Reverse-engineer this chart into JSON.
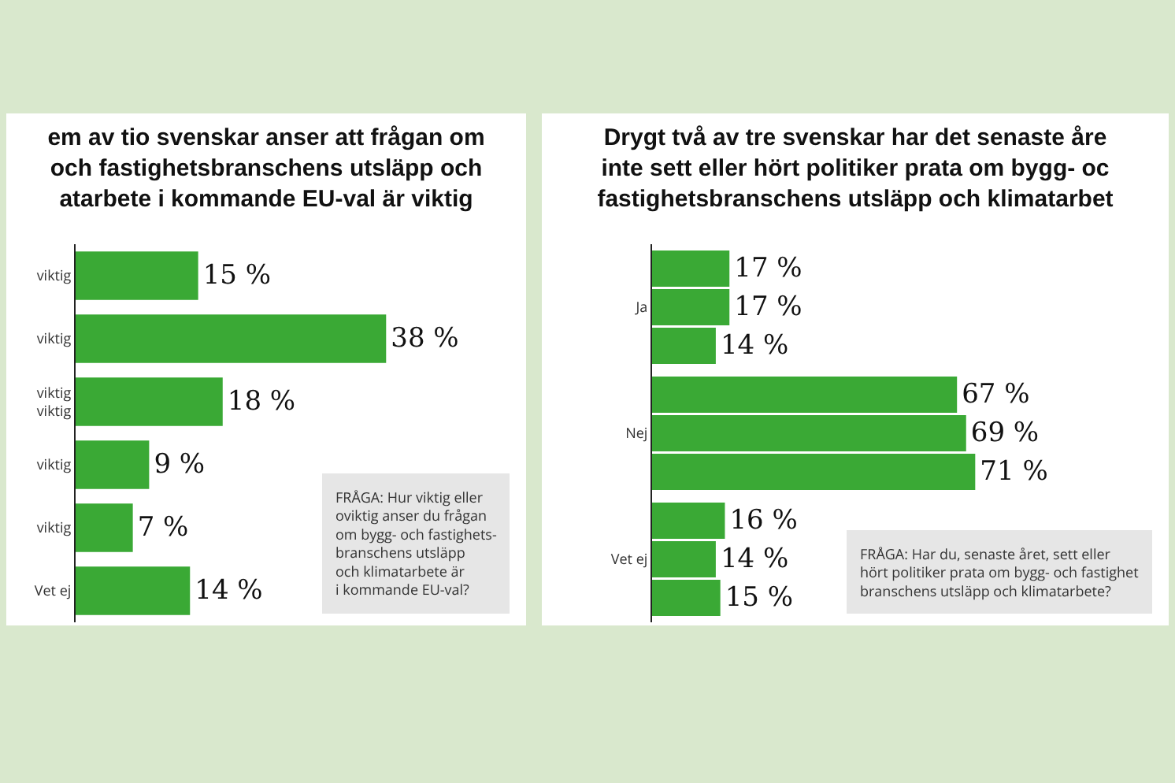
{
  "chart_data": [
    {
      "type": "bar",
      "orientation": "horizontal",
      "title": "em av tio svenskar anser att frågan om\noch fastighetsbranschens utsläpp och\natarbete i kommande EU-val är viktig",
      "categories": [
        "viktig",
        "viktig",
        "viktig\nviktig",
        "viktig",
        "viktig",
        "Vet ej"
      ],
      "series": [
        {
          "color": "#3aa935",
          "values": [
            15,
            38,
            18,
            9,
            7,
            14
          ],
          "value_labels": [
            "15 %",
            "38 %",
            "18 %",
            "9 %",
            "7 %",
            "14 %"
          ]
        }
      ],
      "tick_labels": "y",
      "annotations": [
        "FRÅGA: Hur viktig eller\noviktig anser du frågan\nom bygg- och fastighets-\nbranschens utsläpp\noch klimatarbete är\ni kommande EU-val?"
      ]
    },
    {
      "type": "bar",
      "orientation": "horizontal",
      "title": "Drygt två av tre svenskar har det senaste åre\ninte sett eller hört politiker prata om bygg- oc\nfastighetsbranschens utsläpp och klimatarbet",
      "categories": [
        "Ja",
        "Nej",
        "Vet ej"
      ],
      "series": [
        {
          "color": "#3aa935",
          "values": [
            17,
            67,
            16
          ],
          "value_labels": [
            "17 %",
            "67 %",
            "16 %"
          ]
        },
        {
          "color": "#3aa935",
          "values": [
            17,
            69,
            14
          ],
          "value_labels": [
            "17 %",
            "69 %",
            "14 %"
          ]
        },
        {
          "color": "#3aa935",
          "values": [
            14,
            71,
            15
          ],
          "value_labels": [
            "14 %",
            "71 %",
            "15 %"
          ]
        }
      ],
      "tick_labels": "y",
      "annotations": [
        "FRÅGA: Har du, senaste året, sett eller\nhört politiker prata om bygg- och fastighet\nbranschens utsläpp och klimatarbete?"
      ]
    }
  ]
}
